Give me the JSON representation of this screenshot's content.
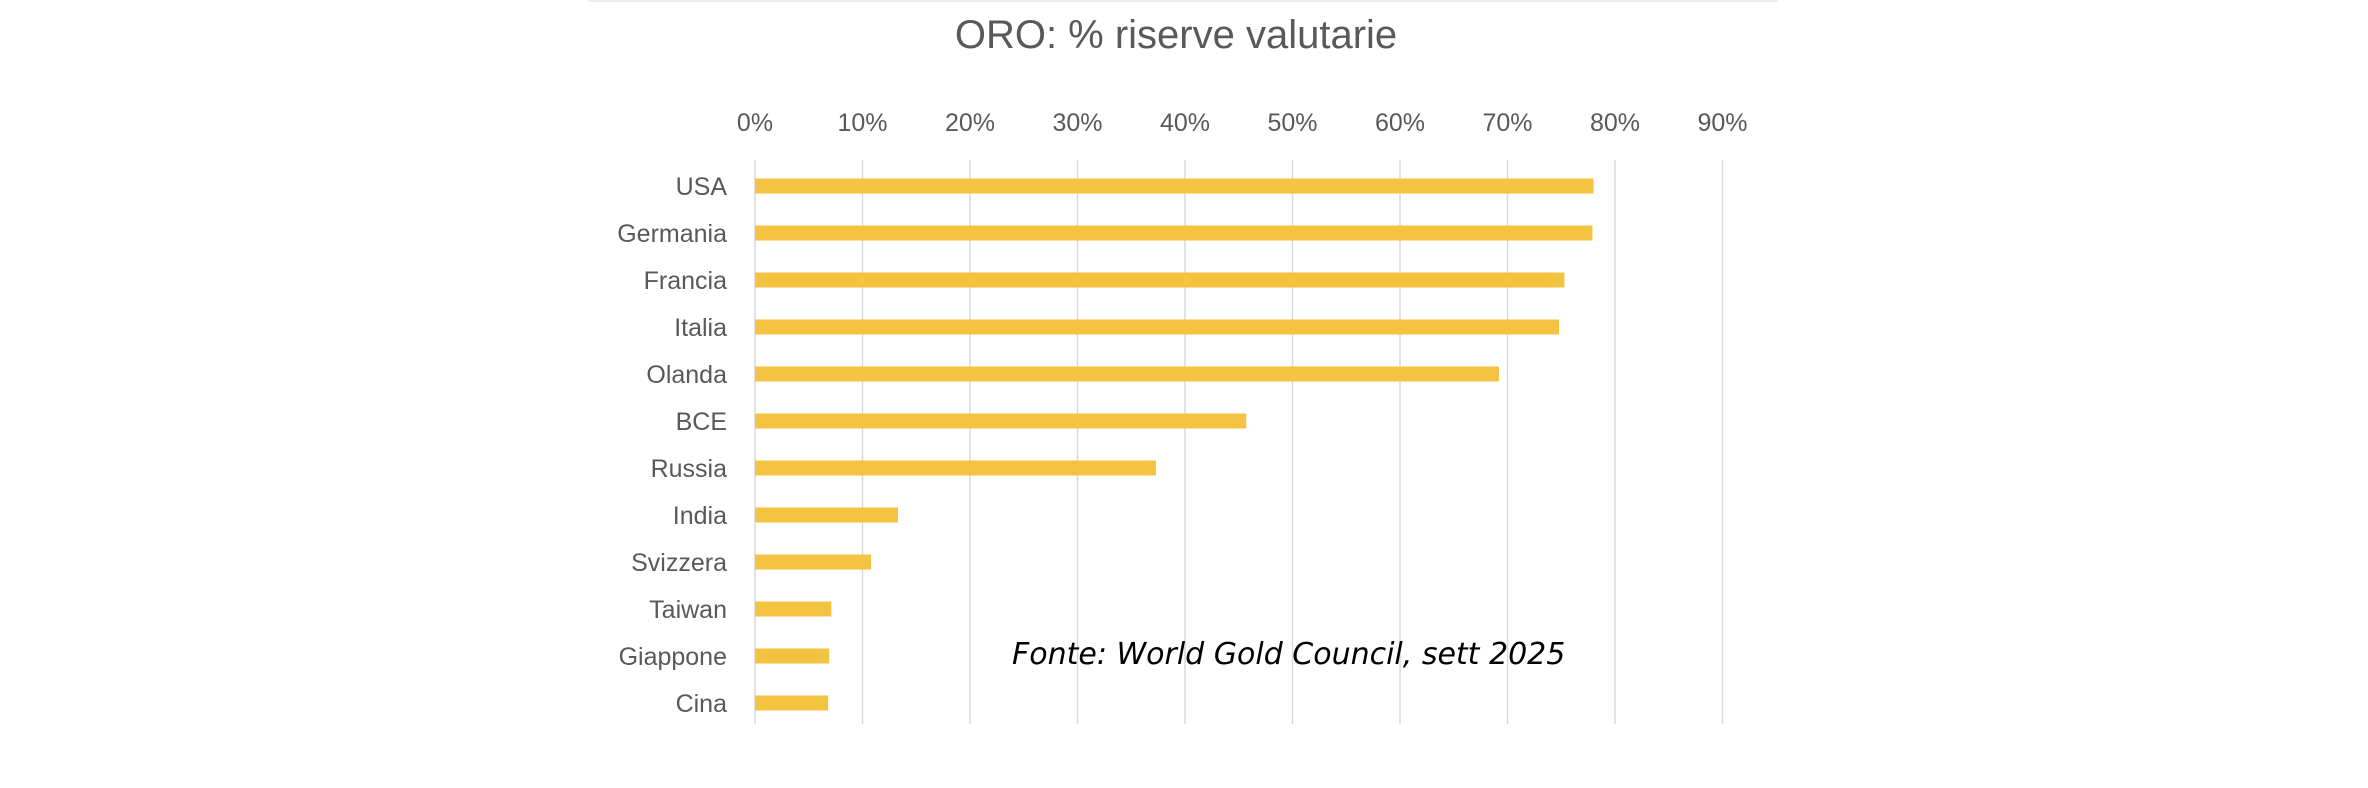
{
  "chart_data": {
    "type": "bar",
    "orientation": "horizontal",
    "title": "ORO: % riserve valutarie",
    "annotation": "Fonte: World Gold Council, sett 2025",
    "categories": [
      "USA",
      "Germania",
      "Francia",
      "Italia",
      "Olanda",
      "BCE",
      "Russia",
      "India",
      "Svizzera",
      "Taiwan",
      "Giappone",
      "Cina"
    ],
    "values": [
      78.0,
      77.9,
      75.3,
      74.8,
      69.2,
      45.7,
      37.3,
      13.3,
      10.8,
      7.1,
      6.9,
      6.8
    ],
    "xlim": [
      0,
      90
    ],
    "xticks": [
      "0%",
      "10%",
      "20%",
      "30%",
      "40%",
      "50%",
      "60%",
      "70%",
      "80%",
      "90%"
    ],
    "x_axis_position": "top",
    "grid": true,
    "bar_color": "#F5C342"
  }
}
